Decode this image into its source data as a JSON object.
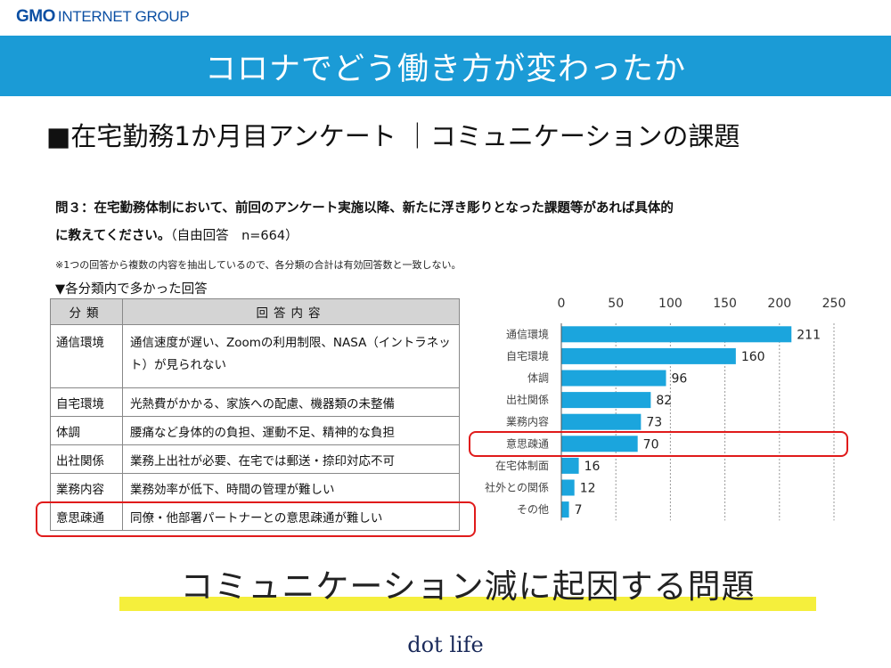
{
  "logo": {
    "mark": "GMO",
    "text": "INTERNET GROUP"
  },
  "banner": {
    "title": "コロナでどう働き方が変わったか"
  },
  "subtitle": "■在宅勤務1か月目アンケート ｜コミュニケーションの課題",
  "question": {
    "line1": "問３：在宅勤務体制において、前回のアンケート実施以降、新たに浮き彫りとなった課題等があれば具体的",
    "line2_bold": "に教えてください。",
    "line2_normal": "（自由回答　n=664）",
    "note": "※1つの回答から複数の内容を抽出しているので、各分類の合計は有効回答数と一致しない。",
    "section": "▼各分類内で多かった回答"
  },
  "table": {
    "headers": [
      "分類",
      "回答内容"
    ],
    "rows": [
      {
        "category": "通信環境",
        "content": "通信速度が遅い、Zoomの利用制限、NASA（イントラネット）が見られない"
      },
      {
        "category": "自宅環境",
        "content": "光熱費がかかる、家族への配慮、機器類の未整備"
      },
      {
        "category": "体調",
        "content": "腰痛など身体的の負担、運動不足、精神的な負担"
      },
      {
        "category": "出社関係",
        "content": "業務上出社が必要、在宅では郵送・捺印対応不可"
      },
      {
        "category": "業務内容",
        "content": "業務効率が低下、時間の管理が難しい"
      },
      {
        "category": "意思疎通",
        "content": "同僚・他部署パートナーとの意思疎通が難しい"
      }
    ]
  },
  "chart_data": {
    "type": "bar",
    "orientation": "horizontal",
    "categories": [
      "通信環境",
      "自宅環境",
      "体調",
      "出社関係",
      "業務内容",
      "意思疎通",
      "在宅体制面",
      "社外との関係",
      "その他"
    ],
    "values": [
      211,
      160,
      96,
      82,
      73,
      70,
      16,
      12,
      7
    ],
    "xlim": [
      0,
      250
    ],
    "xticks": [
      0,
      50,
      100,
      150,
      200,
      250
    ],
    "grid": "vertical-dashed",
    "bar_color": "#1ba5dd",
    "highlight_category": "意思疎通"
  },
  "bottom_message": "コミュニケーション減に起因する問題",
  "footer": "dot life",
  "colors": {
    "banner": "#1b9bd6",
    "highlight": "#e01b1b",
    "marker": "#f5ef3c",
    "bar": "#1ba5dd"
  }
}
